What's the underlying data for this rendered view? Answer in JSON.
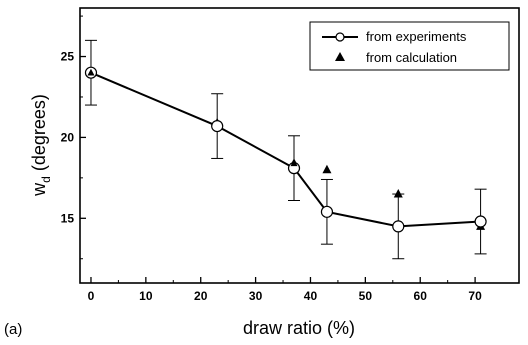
{
  "chart_data": {
    "type": "line",
    "panel_label": "(a)",
    "xlabel": "draw ratio (%)",
    "ylabel": {
      "base": "w",
      "subscript": "d",
      "rest": " (degrees)"
    },
    "xlim": [
      -2,
      78
    ],
    "ylim": [
      11,
      28
    ],
    "xticks": [
      0,
      10,
      20,
      30,
      40,
      50,
      60,
      70
    ],
    "yticks": [
      15,
      20,
      25
    ],
    "grid": false,
    "legend_position": "top-right",
    "series": [
      {
        "name": "from experiments",
        "marker": "open-circle",
        "connected": true,
        "x": [
          0,
          23,
          37,
          43,
          56,
          71
        ],
        "y": [
          24,
          20.7,
          18.1,
          15.4,
          14.5,
          14.8
        ],
        "error": [
          2,
          2,
          2,
          2,
          2,
          2
        ]
      },
      {
        "name": "from calculation",
        "marker": "filled-triangle",
        "connected": false,
        "x": [
          0,
          23,
          37,
          43,
          56,
          71
        ],
        "y": [
          24.0,
          20.9,
          18.4,
          18.0,
          16.5,
          14.5
        ]
      }
    ]
  }
}
